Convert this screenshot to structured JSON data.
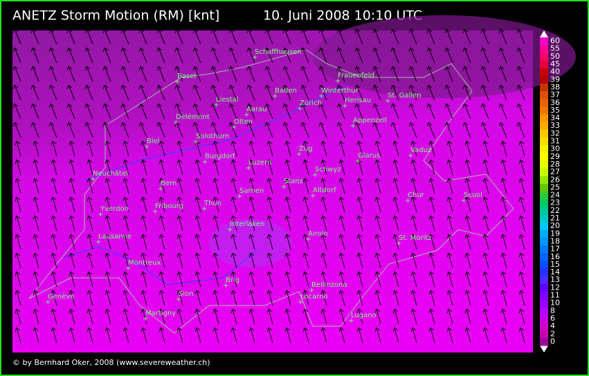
{
  "header": {
    "title": "ANETZ Storm Motion (RM) [knt]",
    "date": "10. Juni 2008 10:10 UTC"
  },
  "cities": [
    "Schaffhausen",
    "Basel",
    "Frauenfeld",
    "Baden",
    "Winterthur",
    "Liestal",
    "St. Gallen",
    "Zürich",
    "Herisau",
    "Delémont",
    "Aarau",
    "Olten",
    "Appenzell",
    "Solothurn",
    "Biel",
    "Zug",
    "Vaduz",
    "Glarus",
    "Burgdorf",
    "Luzern",
    "Neuchâtel",
    "Schwyz",
    "Bern",
    "Stans",
    "Sarnen",
    "Altdorf",
    "Chur",
    "Scuol",
    "Yverdon",
    "Fribourg",
    "Thun",
    "Interlaken",
    "Airolo",
    "Lausanne",
    "St. Moritz",
    "Montreux",
    "Brig",
    "Bellinzona",
    "Genève",
    "Sion",
    "Locarno",
    "Martigny",
    "Lugano"
  ],
  "scale": [
    {
      "value": 60,
      "color": "#ff00c8"
    },
    {
      "value": 55,
      "color": "#ff0096"
    },
    {
      "value": 50,
      "color": "#ff0064"
    },
    {
      "value": 45,
      "color": "#e6003c"
    },
    {
      "value": 40,
      "color": "#c80000"
    },
    {
      "value": 39,
      "color": "#b40000"
    },
    {
      "value": 38,
      "color": "#c83200"
    },
    {
      "value": 37,
      "color": "#dc5000"
    },
    {
      "value": 36,
      "color": "#e66400"
    },
    {
      "value": 35,
      "color": "#f07800"
    },
    {
      "value": 34,
      "color": "#ff9600"
    },
    {
      "value": 33,
      "color": "#ffaa00"
    },
    {
      "value": 32,
      "color": "#ffc800"
    },
    {
      "value": 31,
      "color": "#ffdc00"
    },
    {
      "value": 30,
      "color": "#fff000"
    },
    {
      "value": 29,
      "color": "#ffff00"
    },
    {
      "value": 28,
      "color": "#e6ff00"
    },
    {
      "value": 27,
      "color": "#c8ff00"
    },
    {
      "value": 26,
      "color": "#96e600"
    },
    {
      "value": 25,
      "color": "#64c800"
    },
    {
      "value": 24,
      "color": "#32c832"
    },
    {
      "value": 23,
      "color": "#00c864"
    },
    {
      "value": 22,
      "color": "#00c896"
    },
    {
      "value": 21,
      "color": "#00c8c8"
    },
    {
      "value": 20,
      "color": "#00c8ff"
    },
    {
      "value": 19,
      "color": "#00aaff"
    },
    {
      "value": 18,
      "color": "#0096ff"
    },
    {
      "value": 17,
      "color": "#0078ff"
    },
    {
      "value": 16,
      "color": "#0064ff"
    },
    {
      "value": 15,
      "color": "#0050ff"
    },
    {
      "value": 14,
      "color": "#2832ff"
    },
    {
      "value": 13,
      "color": "#5028ff"
    },
    {
      "value": 12,
      "color": "#6400ff"
    },
    {
      "value": 11,
      "color": "#8200ff"
    },
    {
      "value": 10,
      "color": "#9600ff"
    },
    {
      "value": 8,
      "color": "#b400ff"
    },
    {
      "value": 6,
      "color": "#c800e6"
    },
    {
      "value": 4,
      "color": "#d200c8"
    },
    {
      "value": 2,
      "color": "#c800b4"
    },
    {
      "value": 0,
      "color": "#a000a0"
    }
  ],
  "footer": {
    "copyright": "© by Bernhard Oker, 2008 (www.severeweather.ch)"
  }
}
